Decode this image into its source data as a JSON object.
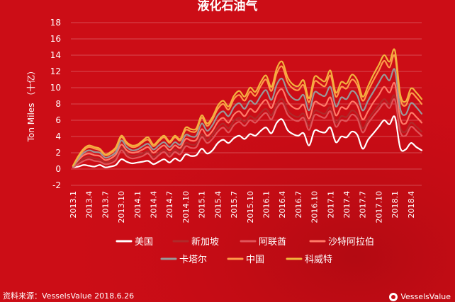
{
  "chart_data": {
    "type": "line",
    "title": "液化石油气",
    "ylabel": "Ton Miles （十亿）",
    "ylim": [
      -2,
      18
    ],
    "yticks": [
      -2,
      0,
      2,
      4,
      6,
      8,
      10,
      12,
      14,
      16,
      18
    ],
    "x": [
      "2013.1",
      "2013.2",
      "2013.3",
      "2013.4",
      "2013.5",
      "2013.6",
      "2013.7",
      "2013.8",
      "2013.9",
      "2013.10",
      "2013.11",
      "2013.12",
      "2014.1",
      "2014.2",
      "2014.3",
      "2014.4",
      "2014.5",
      "2014.6",
      "2014.7",
      "2014.8",
      "2014.9",
      "2014.10",
      "2014.11",
      "2014.12",
      "2015.1",
      "2015.2",
      "2015.3",
      "2015.4",
      "2015.5",
      "2015.6",
      "2015.7",
      "2015.8",
      "2015.9",
      "2015.10",
      "2015.11",
      "2015.12",
      "2016.1",
      "2016.2",
      "2016.3",
      "2016.4",
      "2016.5",
      "2016.6",
      "2016.7",
      "2016.8",
      "2016.9",
      "2016.10",
      "2016.11",
      "2016.12",
      "2017.1",
      "2017.2",
      "2017.3",
      "2017.4",
      "2017.5",
      "2017.6",
      "2017.7",
      "2017.8",
      "2017.9",
      "2017.10",
      "2017.11",
      "2017.12",
      "2018.1",
      "2018.2",
      "2018.3",
      "2018.4",
      "2018.5",
      "2018.6"
    ],
    "xtick_labels": [
      "2013.1",
      "2013.4",
      "2013.7",
      "2013.10",
      "2014.1",
      "2014.4",
      "2014.7",
      "2014.10",
      "2015.1",
      "2015.4",
      "2015.7",
      "2015.10",
      "2016.1",
      "2016.4",
      "2016.7",
      "2016.10",
      "2017.1",
      "2017.4",
      "2017.7",
      "2017.10",
      "2018.1",
      "2018.4"
    ],
    "legend_position": "bottom",
    "series": [
      {
        "name": "美国",
        "color": "#ffffff",
        "values": [
          0.2,
          0.3,
          0.5,
          0.4,
          0.3,
          0.5,
          0.2,
          0.3,
          0.5,
          1.2,
          0.9,
          0.7,
          0.8,
          0.9,
          1.0,
          0.6,
          0.9,
          1.2,
          0.8,
          1.3,
          1.0,
          1.8,
          1.6,
          1.7,
          2.5,
          1.9,
          2.3,
          3.2,
          3.6,
          3.2,
          3.8,
          4.1,
          3.7,
          4.3,
          4.1,
          4.7,
          5.1,
          4.4,
          5.7,
          6.1,
          4.8,
          4.3,
          4.1,
          4.4,
          2.9,
          4.7,
          4.6,
          4.5,
          5.1,
          3.3,
          4.0,
          3.9,
          4.6,
          4.2,
          2.5,
          3.6,
          4.4,
          5.2,
          6.0,
          5.5,
          6.4,
          2.6,
          2.4,
          3.2,
          2.7,
          2.3
        ]
      },
      {
        "name": "新加坡",
        "color": "#b02a2a",
        "values": [
          0.3,
          0.8,
          1.3,
          1.5,
          1.3,
          1.2,
          0.8,
          1.0,
          1.4,
          2.6,
          1.9,
          1.6,
          1.7,
          1.9,
          2.2,
          1.5,
          2.0,
          2.4,
          1.8,
          2.4,
          2.1,
          3.2,
          3.0,
          3.1,
          4.3,
          3.6,
          4.2,
          5.1,
          5.6,
          5.0,
          5.9,
          6.3,
          5.8,
          6.5,
          6.2,
          6.9,
          7.4,
          6.6,
          8.0,
          8.6,
          7.2,
          6.6,
          6.4,
          6.8,
          5.3,
          7.1,
          7.0,
          6.8,
          7.6,
          5.7,
          6.5,
          6.4,
          7.2,
          6.7,
          5.0,
          6.1,
          7.0,
          7.8,
          8.6,
          8.0,
          9.0,
          5.1,
          4.6,
          5.7,
          5.2,
          4.6
        ]
      },
      {
        "name": "阿联酋",
        "color": "#e0555a",
        "values": [
          0.2,
          0.6,
          1.0,
          1.2,
          1.0,
          0.9,
          0.6,
          0.7,
          1.1,
          2.3,
          1.6,
          1.3,
          1.4,
          1.6,
          1.9,
          1.2,
          1.7,
          2.1,
          1.5,
          2.1,
          1.8,
          2.8,
          2.6,
          2.7,
          3.9,
          3.2,
          3.7,
          4.6,
          5.1,
          4.5,
          5.4,
          5.8,
          5.3,
          6.0,
          5.7,
          6.4,
          6.9,
          6.1,
          7.5,
          8.1,
          6.7,
          6.1,
          5.9,
          6.3,
          4.8,
          6.6,
          6.5,
          6.3,
          7.1,
          5.2,
          6.0,
          5.9,
          6.7,
          6.2,
          4.5,
          5.6,
          6.5,
          7.3,
          8.1,
          7.5,
          8.5,
          4.6,
          4.1,
          5.2,
          4.7,
          4.1
        ]
      },
      {
        "name": "沙特阿拉伯",
        "color": "#ff7a68",
        "values": [
          0.3,
          1.1,
          1.7,
          1.9,
          1.7,
          1.6,
          1.1,
          1.3,
          1.8,
          3.0,
          2.3,
          2.0,
          2.1,
          2.4,
          2.7,
          2.0,
          2.5,
          2.9,
          2.3,
          2.9,
          2.6,
          3.7,
          3.5,
          3.6,
          4.9,
          4.1,
          4.7,
          5.8,
          6.3,
          5.7,
          6.7,
          7.1,
          6.5,
          7.4,
          7.0,
          7.9,
          8.5,
          7.5,
          9.2,
          9.8,
          8.3,
          7.6,
          7.4,
          7.9,
          6.2,
          8.2,
          8.0,
          7.8,
          8.8,
          6.6,
          7.6,
          7.4,
          8.3,
          7.8,
          6.1,
          7.1,
          8.2,
          9.1,
          10.1,
          9.4,
          10.5,
          6.2,
          5.6,
          6.9,
          6.4,
          5.7
        ]
      },
      {
        "name": "卡塔尔",
        "color": "#999999",
        "values": [
          0.3,
          1.3,
          2.0,
          2.3,
          2.1,
          2.0,
          1.4,
          1.6,
          2.1,
          3.5,
          2.7,
          2.3,
          2.4,
          2.8,
          3.1,
          2.4,
          2.9,
          3.3,
          2.7,
          3.3,
          3.0,
          4.2,
          4.0,
          4.1,
          5.6,
          4.7,
          5.4,
          6.6,
          7.1,
          6.5,
          7.6,
          8.1,
          7.4,
          8.4,
          8.0,
          9.0,
          9.7,
          8.5,
          10.4,
          11.1,
          9.5,
          8.7,
          8.5,
          9.1,
          7.2,
          9.4,
          9.2,
          9.0,
          10.1,
          7.7,
          8.8,
          8.6,
          9.6,
          9.0,
          7.2,
          8.4,
          9.5,
          10.6,
          11.6,
          10.9,
          12.2,
          7.4,
          6.7,
          8.1,
          7.6,
          6.8
        ]
      },
      {
        "name": "中国",
        "color": "#ff9a4a",
        "values": [
          0.4,
          1.5,
          2.3,
          2.7,
          2.5,
          2.3,
          1.7,
          1.9,
          2.5,
          3.9,
          3.1,
          2.7,
          2.8,
          3.3,
          3.6,
          2.8,
          3.4,
          3.9,
          3.2,
          3.9,
          3.5,
          4.8,
          4.6,
          4.7,
          6.3,
          5.3,
          6.1,
          7.4,
          8.0,
          7.3,
          8.6,
          9.1,
          8.4,
          9.5,
          9.0,
          10.2,
          11.0,
          9.6,
          11.8,
          12.6,
          10.7,
          9.9,
          9.7,
          10.3,
          8.2,
          10.7,
          10.5,
          10.2,
          11.5,
          8.9,
          10.1,
          9.9,
          11.0,
          10.3,
          8.4,
          9.6,
          10.9,
          12.1,
          13.3,
          12.5,
          13.9,
          8.7,
          7.8,
          9.3,
          8.8,
          8.0
        ]
      },
      {
        "name": "科威特",
        "color": "#f2b33d",
        "values": [
          0.4,
          1.6,
          2.5,
          2.9,
          2.7,
          2.5,
          1.8,
          2.1,
          2.7,
          4.1,
          3.3,
          2.9,
          3.0,
          3.5,
          3.9,
          3.0,
          3.6,
          4.1,
          3.4,
          4.1,
          3.7,
          5.1,
          4.9,
          5.0,
          6.6,
          5.6,
          6.4,
          7.8,
          8.4,
          7.7,
          9.0,
          9.6,
          8.9,
          10.0,
          9.5,
          10.7,
          11.5,
          10.1,
          12.4,
          13.2,
          11.3,
          10.4,
          10.2,
          10.9,
          8.7,
          11.3,
          11.1,
          10.8,
          12.1,
          9.4,
          10.7,
          10.5,
          11.6,
          10.9,
          8.9,
          10.2,
          11.6,
          12.8,
          14.0,
          13.2,
          14.6,
          9.2,
          8.3,
          9.9,
          9.4,
          8.6
        ]
      }
    ]
  },
  "footer": {
    "source": "资料来源：VesselsValue 2018.6.26",
    "brand": "VesselsValue"
  }
}
